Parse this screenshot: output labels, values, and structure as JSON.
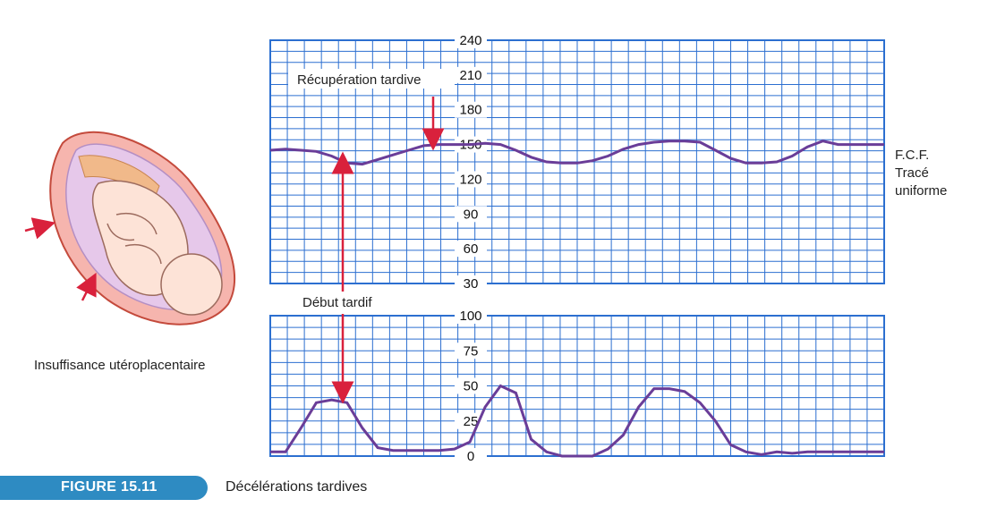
{
  "colors": {
    "grid": "#2c6fd0",
    "trace": "#6a3d98",
    "arrow": "#d9213c",
    "accent": "#2e8bc2"
  },
  "labels": {
    "recovery": "Récupération tardive",
    "onset": "Début tardif",
    "fhr_line1": "F.C.F.",
    "fhr_line2": "Tracé",
    "fhr_line3": "uniforme",
    "illustration": "Insuffisance utéroplacentaire"
  },
  "caption": {
    "number": "FIGURE 15.11",
    "title": "Décélérations tardives"
  },
  "chart_data": [
    {
      "type": "line",
      "name": "fetal-heart-rate",
      "ylabel": "F.C.F.",
      "yticks": [
        "240",
        "210",
        "180",
        "150",
        "120",
        "90",
        "60",
        "30"
      ],
      "ylim": [
        30,
        240
      ],
      "x": [
        0,
        1,
        2,
        3,
        4,
        5,
        6,
        7,
        8,
        9,
        10,
        11,
        12,
        13,
        14,
        15,
        16,
        17,
        18,
        19,
        20,
        21,
        22,
        23,
        24,
        25,
        26,
        27,
        28,
        29,
        30,
        31,
        32,
        33,
        34,
        35,
        36,
        37,
        38,
        39,
        40
      ],
      "values": [
        145,
        146,
        145,
        144,
        140,
        134,
        133,
        137,
        141,
        145,
        149,
        150,
        150,
        150,
        151,
        150,
        145,
        139,
        135,
        134,
        134,
        136,
        140,
        146,
        150,
        152,
        153,
        153,
        152,
        145,
        138,
        134,
        134,
        135,
        140,
        148,
        153,
        150,
        150,
        150,
        150
      ]
    },
    {
      "type": "line",
      "name": "uterine-contractions",
      "yticks": [
        "100",
        "75",
        "50",
        "25",
        "0"
      ],
      "ylim": [
        0,
        100
      ],
      "x": [
        0,
        1,
        2,
        3,
        4,
        5,
        6,
        7,
        8,
        9,
        10,
        11,
        12,
        13,
        14,
        15,
        16,
        17,
        18,
        19,
        20,
        21,
        22,
        23,
        24,
        25,
        26,
        27,
        28,
        29,
        30,
        31,
        32,
        33,
        34,
        35,
        36,
        37,
        38,
        39,
        40
      ],
      "values": [
        3,
        3,
        20,
        38,
        40,
        38,
        20,
        6,
        4,
        4,
        4,
        4,
        5,
        10,
        35,
        50,
        45,
        12,
        3,
        0,
        0,
        0,
        5,
        15,
        35,
        48,
        48,
        46,
        38,
        25,
        8,
        3,
        1,
        3,
        2,
        3,
        3,
        3,
        3,
        3,
        3
      ]
    }
  ]
}
